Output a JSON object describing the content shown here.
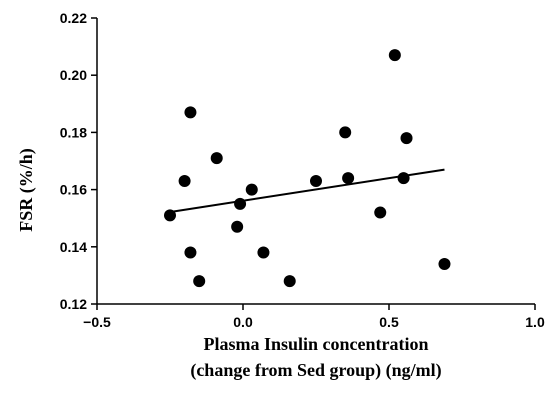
{
  "chart_data": {
    "type": "scatter",
    "title": "",
    "xlabel_lines": [
      "Plasma Insulin concentration",
      "(change from Sed group) (ng/ml)"
    ],
    "ylabel": "FSR (%/h)",
    "xlim": [
      -0.5,
      1.0
    ],
    "ylim": [
      0.12,
      0.22
    ],
    "x_ticks": [
      -0.5,
      0.0,
      0.5,
      1.0
    ],
    "x_tick_labels": [
      "−0.5",
      "0.0",
      "0.5",
      "1.0"
    ],
    "y_ticks": [
      0.12,
      0.14,
      0.16,
      0.18,
      0.2,
      0.22
    ],
    "y_tick_labels": [
      "0.12",
      "0.14",
      "0.16",
      "0.18",
      "0.20",
      "0.22"
    ],
    "grid": false,
    "points": [
      {
        "x": -0.25,
        "y": 0.151
      },
      {
        "x": -0.2,
        "y": 0.163
      },
      {
        "x": -0.18,
        "y": 0.187
      },
      {
        "x": -0.18,
        "y": 0.138
      },
      {
        "x": -0.15,
        "y": 0.128
      },
      {
        "x": -0.09,
        "y": 0.171
      },
      {
        "x": -0.02,
        "y": 0.147
      },
      {
        "x": -0.01,
        "y": 0.155
      },
      {
        "x": 0.03,
        "y": 0.16
      },
      {
        "x": 0.07,
        "y": 0.138
      },
      {
        "x": 0.16,
        "y": 0.128
      },
      {
        "x": 0.25,
        "y": 0.163
      },
      {
        "x": 0.35,
        "y": 0.18
      },
      {
        "x": 0.36,
        "y": 0.164
      },
      {
        "x": 0.47,
        "y": 0.152
      },
      {
        "x": 0.52,
        "y": 0.207
      },
      {
        "x": 0.55,
        "y": 0.164
      },
      {
        "x": 0.56,
        "y": 0.178
      },
      {
        "x": 0.69,
        "y": 0.134
      }
    ],
    "trendline": {
      "x": [
        -0.26,
        0.69
      ],
      "y": [
        0.152,
        0.167
      ]
    },
    "colors": {
      "marker": "#000000",
      "line": "#000000",
      "axis": "#000000"
    }
  }
}
